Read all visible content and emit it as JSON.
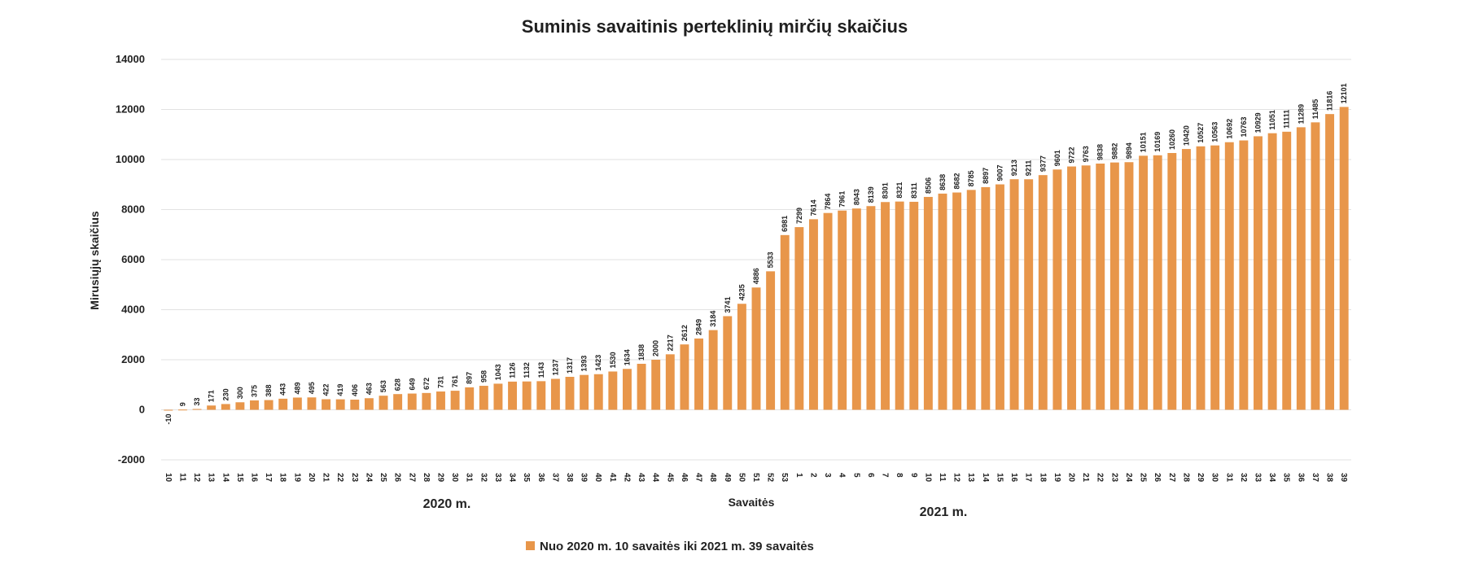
{
  "chart_data": {
    "type": "bar",
    "title": "Suminis savaitinis perteklinių mirčių skaičius",
    "xlabel": "Savaitės",
    "ylabel": "Mirusiųjų skaičius",
    "ylim": [
      -2000,
      14000
    ],
    "yticks": [
      -2000,
      0,
      2000,
      4000,
      6000,
      8000,
      10000,
      12000,
      14000
    ],
    "grid": true,
    "legend_position": "bottom-center",
    "year_labels": [
      "2020 m.",
      "2021 m."
    ],
    "categories": [
      "10",
      "11",
      "12",
      "13",
      "14",
      "15",
      "16",
      "17",
      "18",
      "19",
      "20",
      "21",
      "22",
      "23",
      "24",
      "25",
      "26",
      "27",
      "28",
      "29",
      "30",
      "31",
      "32",
      "33",
      "34",
      "35",
      "36",
      "37",
      "38",
      "39",
      "40",
      "41",
      "42",
      "43",
      "44",
      "45",
      "46",
      "47",
      "48",
      "49",
      "50",
      "51",
      "52",
      "53",
      "1",
      "2",
      "3",
      "4",
      "5",
      "6",
      "7",
      "8",
      "9",
      "10",
      "11",
      "12",
      "13",
      "14",
      "15",
      "16",
      "17",
      "18",
      "19",
      "20",
      "21",
      "22",
      "23",
      "24",
      "25",
      "26",
      "27",
      "28",
      "29",
      "30",
      "31",
      "32",
      "33",
      "34",
      "35",
      "36",
      "37",
      "38",
      "39"
    ],
    "series": [
      {
        "name": "Nuo 2020 m. 10 savaitės iki 2021 m. 39 savaitės",
        "color": "#e8964a",
        "values": [
          -10,
          9,
          33,
          171,
          230,
          300,
          375,
          388,
          443,
          489,
          495,
          422,
          419,
          406,
          463,
          563,
          628,
          649,
          672,
          731,
          761,
          897,
          958,
          1043,
          1126,
          1132,
          1143,
          1237,
          1317,
          1393,
          1423,
          1530,
          1634,
          1838,
          2000,
          2217,
          2612,
          2849,
          3184,
          3741,
          4235,
          4886,
          5533,
          6981,
          7299,
          7614,
          7864,
          7961,
          8043,
          8139,
          8301,
          8321,
          8311,
          8506,
          8638,
          8682,
          8785,
          8897,
          9007,
          9213,
          9211,
          9377,
          9601,
          9722,
          9763,
          9838,
          9882,
          9894,
          10151,
          10169,
          10260,
          10420,
          10527,
          10563,
          10692,
          10763,
          10929,
          11051,
          11111,
          11289,
          11485,
          11816,
          12101
        ]
      }
    ]
  }
}
